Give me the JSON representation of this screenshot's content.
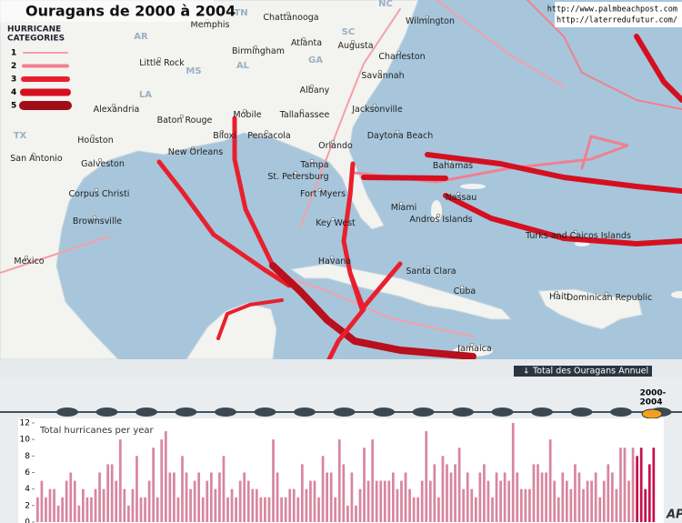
{
  "header": {
    "title": "Ouragans de 2000 à 2004",
    "credits": [
      "http://www.palmbeachpost.com",
      "http://laterredufutur.com/"
    ]
  },
  "legend": {
    "title": [
      "HURRICANE",
      "CATEGORIES"
    ],
    "categories": [
      "1",
      "2",
      "3",
      "4",
      "5"
    ]
  },
  "map": {
    "cities": [
      "Chattanooga",
      "Memphis",
      "Wilmington",
      "Birmingham",
      "Atlanta",
      "Augusta",
      "Charleston",
      "Little Rock",
      "Savannah",
      "Albany",
      "Alexandria",
      "Baton Rouge",
      "Mobile",
      "Tallahassee",
      "Jacksonville",
      "Houston",
      "Biloxi",
      "Pensacola",
      "Daytona Beach",
      "New Orleans",
      "Orlando",
      "San Antonio",
      "Galveston",
      "Tampa",
      "Bahamas",
      "St. Petersburg",
      "Corpus Christi",
      "Fort Myers",
      "Nassau",
      "Miami",
      "Andros Islands",
      "Key West",
      "Brownsville",
      "Turks and Caicos Islands",
      "Mexico",
      "Havana",
      "Santa Clara",
      "Cuba",
      "Haiti",
      "Dominican Republic",
      "Jamaica"
    ],
    "regions": [
      "AR",
      "TN",
      "NC",
      "SC",
      "GA",
      "AL",
      "MS",
      "LA",
      "TX"
    ]
  },
  "timeline": {
    "button": "Total des Ouragans Annuel",
    "period": [
      "2000-",
      "2004"
    ]
  },
  "chart_data": {
    "type": "bar",
    "title": "Total hurricanes per year",
    "ylim": [
      0,
      12
    ],
    "yticks": [
      0,
      2,
      4,
      6,
      8,
      10,
      12
    ],
    "series": [
      {
        "color": "#d8869f",
        "values": [
          3,
          5,
          3,
          4,
          4,
          2,
          3,
          5,
          6,
          5,
          2,
          4,
          3,
          3,
          4,
          6,
          4,
          7,
          7,
          5,
          10,
          4,
          2,
          4,
          8,
          3,
          3,
          5,
          9,
          3,
          10,
          11,
          6,
          6,
          3,
          8,
          6,
          4,
          5,
          6,
          3,
          5,
          6,
          4,
          6,
          8,
          3,
          4,
          3,
          5,
          6,
          5,
          4,
          4,
          3,
          3,
          3,
          10,
          6,
          3,
          3,
          4,
          4,
          3,
          7,
          4,
          5,
          5,
          3,
          8,
          6,
          6,
          3,
          10,
          7,
          2,
          6,
          2,
          4,
          9,
          5,
          10,
          5,
          5,
          5,
          5,
          6,
          4,
          5,
          6,
          4,
          3,
          3,
          5,
          11,
          5,
          7,
          3,
          8,
          7,
          6,
          7,
          9,
          4,
          6,
          4,
          3,
          6,
          7,
          5,
          3,
          6,
          5,
          6,
          5,
          12,
          6,
          4,
          4,
          4,
          7,
          7,
          6,
          6,
          10,
          5,
          3,
          6,
          5,
          4,
          7,
          6,
          4,
          5,
          5,
          6,
          3,
          5,
          7,
          6,
          4,
          9,
          9,
          5,
          9
        ]
      },
      {
        "color": "#c4124c",
        "values": [
          8,
          9,
          4,
          7,
          9
        ]
      }
    ]
  }
}
